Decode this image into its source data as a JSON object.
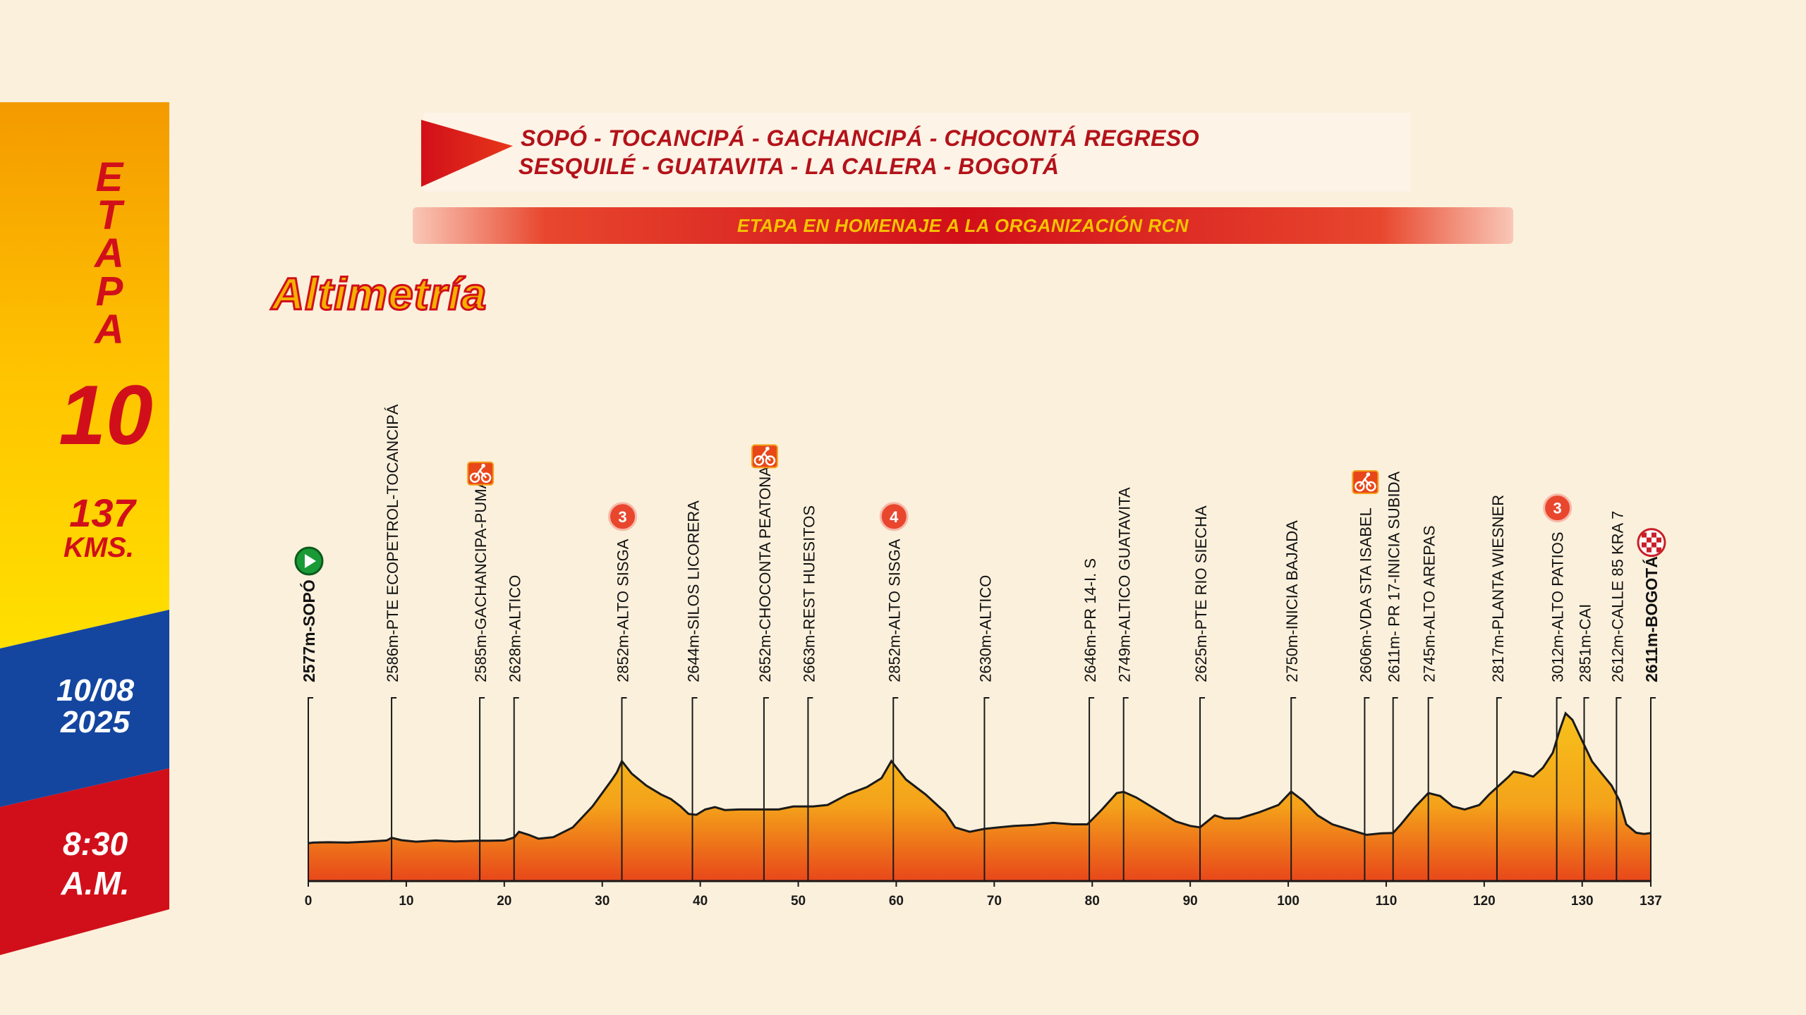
{
  "sidebar": {
    "etapa_letters": [
      "E",
      "T",
      "A",
      "P",
      "A"
    ],
    "stage_number": "10",
    "distance_value": "137",
    "distance_unit": "KMS.",
    "date_line1": "10/08",
    "date_line2": "2025",
    "time_line1": "8:30",
    "time_line2": "A.M."
  },
  "header": {
    "route_line1": "SOPÓ - TOCANCIPÁ - GACHANCIPÁ - CHOCONTÁ REGRESO",
    "route_line2": "SESQUILÉ - GUATAVITA - LA CALERA - BOGOTÁ",
    "homage_banner": "ETAPA EN HOMENAJE A LA ORGANIZACIÓN RCN",
    "section_title": "Altimetría"
  },
  "colors": {
    "red": "#d10f1a",
    "yellow": "#ffd200",
    "orange": "#f49a00",
    "blue": "#1446a0",
    "background": "#fbf0dc",
    "profile_top": "#f7c21b",
    "profile_bottom": "#e8471a"
  },
  "chart_data": {
    "type": "area",
    "xlabel": "",
    "ylabel": "",
    "x_ticks": [
      0,
      10,
      20,
      30,
      40,
      50,
      60,
      70,
      80,
      90,
      100,
      110,
      120,
      130,
      137
    ],
    "xlim": [
      0,
      137
    ],
    "ylim": [
      2450,
      3080
    ],
    "profile": [
      [
        0,
        2577
      ],
      [
        0.5,
        2579
      ],
      [
        2,
        2580
      ],
      [
        4,
        2579
      ],
      [
        6,
        2582
      ],
      [
        8,
        2586
      ],
      [
        8.5,
        2595
      ],
      [
        9.5,
        2587
      ],
      [
        11,
        2582
      ],
      [
        13,
        2586
      ],
      [
        15,
        2583
      ],
      [
        17,
        2585
      ],
      [
        18.5,
        2585
      ],
      [
        20,
        2586
      ],
      [
        21,
        2596
      ],
      [
        21.5,
        2615
      ],
      [
        22.5,
        2605
      ],
      [
        23.5,
        2592
      ],
      [
        25,
        2597
      ],
      [
        27,
        2630
      ],
      [
        29,
        2700
      ],
      [
        31,
        2790
      ],
      [
        31.5,
        2815
      ],
      [
        32,
        2852
      ],
      [
        33,
        2810
      ],
      [
        34.5,
        2770
      ],
      [
        36,
        2740
      ],
      [
        37,
        2725
      ],
      [
        38,
        2700
      ],
      [
        38.8,
        2675
      ],
      [
        39.6,
        2672
      ],
      [
        40.5,
        2690
      ],
      [
        41.5,
        2698
      ],
      [
        42.5,
        2688
      ],
      [
        44,
        2690
      ],
      [
        46,
        2690
      ],
      [
        48,
        2690
      ],
      [
        49.5,
        2700
      ],
      [
        50.5,
        2700
      ],
      [
        51.5,
        2700
      ],
      [
        53,
        2705
      ],
      [
        55,
        2740
      ],
      [
        57,
        2765
      ],
      [
        58.5,
        2795
      ],
      [
        59.5,
        2852
      ],
      [
        61,
        2790
      ],
      [
        63,
        2740
      ],
      [
        65,
        2680
      ],
      [
        66,
        2630
      ],
      [
        67.5,
        2615
      ],
      [
        69,
        2625
      ],
      [
        70.5,
        2630
      ],
      [
        72,
        2635
      ],
      [
        74,
        2638
      ],
      [
        76,
        2645
      ],
      [
        78,
        2640
      ],
      [
        79.5,
        2640
      ],
      [
        81,
        2690
      ],
      [
        82.5,
        2745
      ],
      [
        83.2,
        2749
      ],
      [
        84.5,
        2730
      ],
      [
        86,
        2700
      ],
      [
        87.5,
        2670
      ],
      [
        88.5,
        2650
      ],
      [
        90,
        2635
      ],
      [
        91,
        2630
      ],
      [
        92.5,
        2670
      ],
      [
        93.5,
        2660
      ],
      [
        95,
        2660
      ],
      [
        97,
        2680
      ],
      [
        99,
        2705
      ],
      [
        100.3,
        2750
      ],
      [
        101.5,
        2720
      ],
      [
        103,
        2670
      ],
      [
        104.5,
        2640
      ],
      [
        106,
        2625
      ],
      [
        108,
        2605
      ],
      [
        109.5,
        2610
      ],
      [
        110.7,
        2611
      ],
      [
        111.5,
        2640
      ],
      [
        113,
        2700
      ],
      [
        114.3,
        2745
      ],
      [
        115.5,
        2735
      ],
      [
        116.8,
        2700
      ],
      [
        118,
        2690
      ],
      [
        119.5,
        2705
      ],
      [
        120.5,
        2740
      ],
      [
        121.5,
        2770
      ],
      [
        122.5,
        2800
      ],
      [
        123,
        2817
      ],
      [
        124,
        2810
      ],
      [
        125,
        2800
      ],
      [
        126,
        2830
      ],
      [
        127,
        2880
      ],
      [
        127.7,
        2955
      ],
      [
        128.3,
        3012
      ],
      [
        129,
        2990
      ],
      [
        130,
        2920
      ],
      [
        131,
        2851
      ],
      [
        132,
        2810
      ],
      [
        133,
        2770
      ],
      [
        133.8,
        2720
      ],
      [
        134.5,
        2640
      ],
      [
        135.5,
        2612
      ],
      [
        136.3,
        2608
      ],
      [
        137,
        2611
      ]
    ],
    "points": [
      {
        "km": 0,
        "label": "2577m-SOPÓ",
        "bold": true,
        "marker": "start"
      },
      {
        "km": 8.5,
        "label": "2586m-PTE ECOPETROL-TOCANCIPÁ"
      },
      {
        "km": 17.5,
        "label": "2585m-GACHANCIPA-PUMA",
        "marker": "sprint"
      },
      {
        "km": 21,
        "label": "2628m-ALTICO"
      },
      {
        "km": 32,
        "label": "2852m-ALTO SISGA",
        "marker": "kom",
        "kom_cat": "3"
      },
      {
        "km": 39.2,
        "label": "2644m-SILOS LICORERA"
      },
      {
        "km": 46.5,
        "label": "2652m-CHOCONTA PEATONAL",
        "marker": "sprint"
      },
      {
        "km": 51,
        "label": "2663m-REST HUESITOS"
      },
      {
        "km": 59.7,
        "label": "2852m-ALTO SISGA",
        "marker": "kom",
        "kom_cat": "4"
      },
      {
        "km": 69,
        "label": "2630m-ALTICO"
      },
      {
        "km": 79.7,
        "label": "2646m-PR 14-I. S"
      },
      {
        "km": 83.2,
        "label": "2749m-ALTICO GUATAVITA"
      },
      {
        "km": 91,
        "label": "2625m-PTE RIO SIECHA"
      },
      {
        "km": 100.3,
        "label": "2750m-INICIA BAJADA"
      },
      {
        "km": 107.8,
        "label": "2606m-VDA STA ISABEL",
        "marker": "sprint"
      },
      {
        "km": 110.7,
        "label": "2611m- PR 17-INICIA SUBIDA"
      },
      {
        "km": 114.3,
        "label": "2745m-ALTO AREPAS"
      },
      {
        "km": 121.3,
        "label": "2817m-PLANTA WIESNER"
      },
      {
        "km": 127.4,
        "label": "3012m-ALTO PATIOS",
        "marker": "kom",
        "kom_cat": "3"
      },
      {
        "km": 130.2,
        "label": "2851m-CAI"
      },
      {
        "km": 133.5,
        "label": "2612m-CALLE 85 KRA 7"
      },
      {
        "km": 137,
        "label": "2611m-BOGOTÁ",
        "bold": true,
        "marker": "finish"
      }
    ]
  }
}
